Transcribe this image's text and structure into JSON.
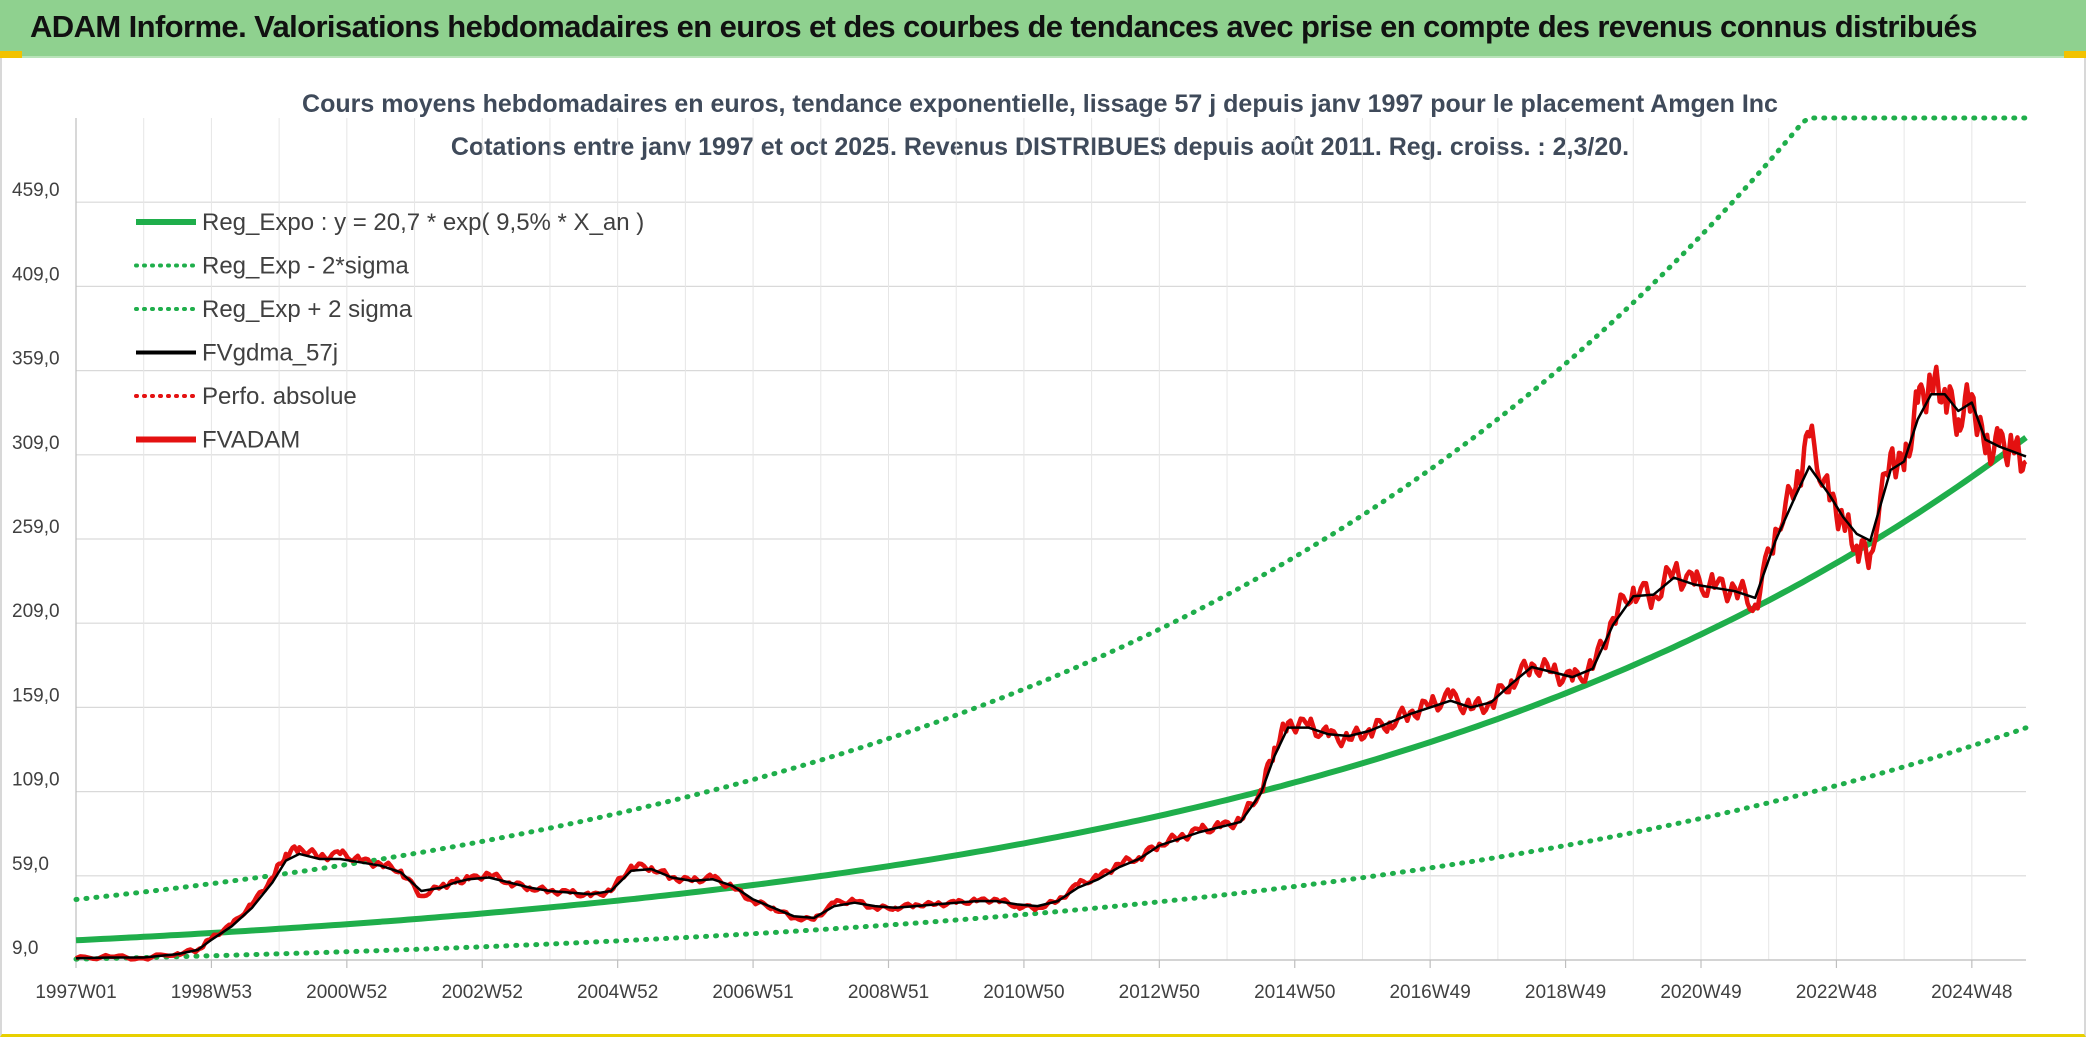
{
  "header": {
    "title": "ADAM Informe. Valorisations hebdomadaires en euros et des courbes de tendances avec prise en compte des revenus connus distribués"
  },
  "colors": {
    "trend": "#1fae4b",
    "band": "#1fae4b",
    "smooth": "#000000",
    "fvadam": "#e41111",
    "perfo": "#e41111",
    "grid": "#d9d9d9",
    "banner": "#8fd18f"
  },
  "chart_data": {
    "type": "line",
    "title": "Cours moyens hebdomadaires en euros, tendance exponentielle, lissage 57 j depuis janv 1997 pour le placement Amgen Inc",
    "subtitle": "Cotations entre janv 1997 et oct 2025. Revenus DISTRIBUES depuis août 2011. Reg. croiss. : 2,3/20.",
    "xlabel": "",
    "ylabel": "",
    "x_ticks": [
      "1997W01",
      "1998W53",
      "2000W52",
      "2002W52",
      "2004W52",
      "2006W51",
      "2008W51",
      "2010W50",
      "2012W50",
      "2014W50",
      "2016W49",
      "2018W49",
      "2020W49",
      "2022W48",
      "2024W48"
    ],
    "y_ticks": [
      "9,0",
      "59,0",
      "109,0",
      "159,0",
      "209,0",
      "259,0",
      "309,0",
      "359,0",
      "409,0",
      "459,0"
    ],
    "ylim": [
      9,
      509
    ],
    "xlim": [
      1997.0,
      2025.8
    ],
    "grid": true,
    "legend_position": "top-left",
    "legend": [
      {
        "label": "Reg_Expo : y = 20,7 * exp( 9,5% *  X_an )",
        "style": "solid-thick",
        "color": "#1fae4b"
      },
      {
        "label": "Reg_Exp - 2*sigma",
        "style": "dotted",
        "color": "#1fae4b"
      },
      {
        "label": "Reg_Exp + 2 sigma",
        "style": "dotted",
        "color": "#1fae4b"
      },
      {
        "label": "FVgdma_57j",
        "style": "solid",
        "color": "#000000"
      },
      {
        "label": "Perfo. absolue",
        "style": "dotted",
        "color": "#e41111"
      },
      {
        "label": "FVADAM",
        "style": "solid-thick",
        "color": "#e41111"
      }
    ],
    "trend_model": {
      "a": 20.7,
      "growth_rate": 0.095,
      "start_year": 1997.0,
      "minus_factor": 0.46,
      "plus_factor": 2.17,
      "cap": 509
    },
    "series": [
      {
        "name": "FVADAM",
        "x": [
          1997.0,
          1997.5,
          1998.0,
          1998.5,
          1998.8,
          1999.0,
          1999.3,
          1999.6,
          1999.9,
          2000.1,
          2000.3,
          2000.6,
          2000.9,
          2001.2,
          2001.5,
          2001.8,
          2002.1,
          2002.4,
          2002.6,
          2002.8,
          2003.1,
          2003.4,
          2003.7,
          2004.0,
          2004.3,
          2004.6,
          2004.9,
          2005.2,
          2005.5,
          2005.8,
          2006.1,
          2006.4,
          2006.7,
          2007.0,
          2007.3,
          2007.6,
          2007.9,
          2008.2,
          2008.5,
          2008.8,
          2009.1,
          2009.4,
          2009.7,
          2010.0,
          2010.3,
          2010.6,
          2010.9,
          2011.2,
          2011.5,
          2011.8,
          2012.1,
          2012.4,
          2012.7,
          2013.0,
          2013.3,
          2013.6,
          2013.9,
          2014.2,
          2014.5,
          2014.7,
          2014.9,
          2015.2,
          2015.5,
          2015.8,
          2016.1,
          2016.4,
          2016.7,
          2017.0,
          2017.3,
          2017.6,
          2017.9,
          2018.2,
          2018.5,
          2018.8,
          2019.1,
          2019.4,
          2019.7,
          2020.0,
          2020.3,
          2020.6,
          2020.9,
          2021.2,
          2021.5,
          2021.8,
          2022.1,
          2022.4,
          2022.6,
          2022.9,
          2023.1,
          2023.3,
          2023.5,
          2023.8,
          2024.0,
          2024.2,
          2024.4,
          2024.6,
          2024.8,
          2025.0,
          2025.2,
          2025.4,
          2025.6,
          2025.8
        ],
        "values": [
          10,
          11,
          10,
          13,
          15,
          22,
          30,
          42,
          58,
          72,
          76,
          70,
          72,
          68,
          66,
          62,
          47,
          53,
          55,
          57,
          60,
          55,
          52,
          50,
          49,
          47,
          50,
          65,
          64,
          58,
          56,
          58,
          52,
          44,
          40,
          34,
          33,
          43,
          44,
          40,
          40,
          42,
          42,
          43,
          44,
          45,
          41,
          40,
          44,
          54,
          58,
          66,
          70,
          78,
          82,
          86,
          88,
          92,
          110,
          135,
          150,
          148,
          142,
          140,
          146,
          150,
          156,
          160,
          165,
          158,
          162,
          175,
          185,
          180,
          175,
          182,
          212,
          230,
          225,
          240,
          232,
          230,
          230,
          220,
          265,
          290,
          320,
          282,
          270,
          255,
          250,
          310,
          300,
          340,
          350,
          348,
          330,
          345,
          310,
          315,
          312,
          305
        ]
      },
      {
        "name": "FVgdma_57j",
        "x": [
          1997.0,
          1997.5,
          1998.0,
          1998.5,
          1998.8,
          1999.0,
          1999.3,
          1999.6,
          1999.9,
          2000.1,
          2000.3,
          2000.6,
          2000.9,
          2001.2,
          2001.5,
          2001.8,
          2002.1,
          2002.4,
          2002.6,
          2002.8,
          2003.1,
          2003.4,
          2003.7,
          2004.0,
          2004.3,
          2004.6,
          2004.9,
          2005.2,
          2005.5,
          2005.8,
          2006.1,
          2006.4,
          2006.7,
          2007.0,
          2007.3,
          2007.6,
          2007.9,
          2008.2,
          2008.5,
          2008.8,
          2009.1,
          2009.4,
          2009.7,
          2010.0,
          2010.3,
          2010.6,
          2010.9,
          2011.2,
          2011.5,
          2011.8,
          2012.1,
          2012.4,
          2012.7,
          2013.0,
          2013.3,
          2013.6,
          2013.9,
          2014.2,
          2014.5,
          2014.7,
          2014.9,
          2015.2,
          2015.5,
          2015.8,
          2016.1,
          2016.4,
          2016.7,
          2017.0,
          2017.3,
          2017.6,
          2017.9,
          2018.2,
          2018.5,
          2018.8,
          2019.1,
          2019.4,
          2019.7,
          2020.0,
          2020.3,
          2020.6,
          2020.9,
          2021.2,
          2021.5,
          2021.8,
          2022.1,
          2022.4,
          2022.6,
          2022.9,
          2023.1,
          2023.3,
          2023.5,
          2023.8,
          2024.0,
          2024.2,
          2024.4,
          2024.6,
          2024.8,
          2025.0,
          2025.2,
          2025.4,
          2025.6,
          2025.8
        ],
        "values": [
          10,
          10.5,
          10.5,
          12.5,
          15,
          21,
          29,
          40,
          55,
          68,
          72,
          69,
          69,
          67,
          65,
          61,
          50,
          52,
          55,
          57,
          58,
          55,
          52,
          50,
          49,
          48,
          50,
          62,
          63,
          58,
          56,
          57,
          53,
          45,
          40,
          35,
          34,
          41,
          43,
          41,
          40,
          41,
          42,
          43,
          44,
          44,
          42,
          41,
          44,
          52,
          57,
          64,
          69,
          77,
          81,
          85,
          88,
          91,
          108,
          130,
          147,
          147,
          143,
          142,
          145,
          150,
          155,
          159,
          163,
          159,
          162,
          173,
          183,
          180,
          177,
          182,
          208,
          225,
          226,
          236,
          232,
          230,
          228,
          224,
          258,
          285,
          302,
          285,
          272,
          262,
          258,
          300,
          305,
          330,
          345,
          345,
          335,
          340,
          318,
          314,
          311,
          308
        ]
      }
    ]
  }
}
